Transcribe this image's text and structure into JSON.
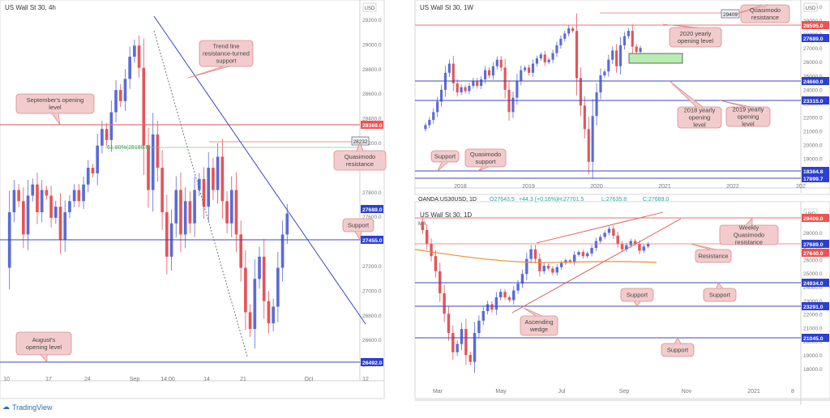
{
  "panels": [
    {
      "title": "US Wall St 30, 4h",
      "currency": "USD",
      "y_ticks": [
        "29200.0",
        "29000.0",
        "28800.0",
        "28600.0",
        "28400.0",
        "28200.0",
        "28000.0",
        "27800.0",
        "27600.0",
        "27400.0",
        "27200.0",
        "27000.0",
        "26800.0",
        "26600.0",
        "26400.0"
      ],
      "x_ticks": [
        "10",
        "17",
        "24",
        "Sep",
        "14:00",
        "14",
        "21",
        "Oct",
        "12"
      ],
      "price_labels": [
        {
          "text": "28369.0",
          "color": "#ef5350"
        },
        {
          "text": "27689.0",
          "color": "#2b3fd1"
        },
        {
          "text": "27455.0",
          "color": "#2b3fd1"
        },
        {
          "text": "26492.0",
          "color": "#2b3fd1"
        }
      ],
      "fib_label": "61.80%(28189.6)",
      "box_label": "28232",
      "annotations": [
        "Trend line resistance-turned support",
        "September's opening level",
        "Quasimodo resistance",
        "Support",
        "August's opening level"
      ]
    },
    {
      "title": "US Wall St 30, 1W",
      "currency": "USD",
      "y_ticks": [
        "30000.0",
        "29000.0",
        "28000.0",
        "27000.0",
        "26000.0",
        "25000.0",
        "24000.0",
        "23000.0",
        "22000.0",
        "21000.0",
        "20000.0",
        "19000.0",
        "18000.0"
      ],
      "x_ticks": [
        "2018",
        "2019",
        "2020",
        "2021",
        "2022",
        "202"
      ],
      "price_labels": [
        {
          "text": "28595.0",
          "color": "#ef5350"
        },
        {
          "text": "27689.0",
          "color": "#2b3fd1"
        },
        {
          "text": "24660.0",
          "color": "#2b3fd1"
        },
        {
          "text": "23315.0",
          "color": "#2b3fd1"
        },
        {
          "text": "18364.8",
          "color": "#2b3fd1"
        },
        {
          "text": "17899.7",
          "color": "#2b3fd1"
        }
      ],
      "box_label": "29409",
      "annotations": [
        "Quasimodo resistance",
        "2020 yearly opening level",
        "2018 yearly opening level",
        "2019 yearly opening level",
        "Support",
        "Quasimodo support"
      ]
    },
    {
      "header": {
        "symbol": "OANDA:US30USD, 1D",
        "o": "O27643.5",
        "change": "+44.3 (+0.16%)",
        "h": "H:27701.5",
        "l": "L:27635.8",
        "c": "C:27689.0"
      },
      "title": "US Wall St 30, 1D",
      "currency": "USD",
      "ma_label": "MA",
      "y_ticks": [
        "29000.0",
        "28000.0",
        "27000.0",
        "26000.0",
        "25000.0",
        "24000.0",
        "23000.0",
        "22000.0",
        "21000.0",
        "20000.0",
        "19000.0",
        "18000.0"
      ],
      "x_ticks": [
        "Mar",
        "May",
        "Jul",
        "Sep",
        "Nov",
        "2021",
        "8"
      ],
      "price_labels": [
        {
          "text": "29409.0",
          "color": "#ef5350"
        },
        {
          "text": "27689.0",
          "color": "#2b3fd1"
        },
        {
          "text": "27640.0",
          "color": "#ef5350"
        },
        {
          "text": "24934.0",
          "color": "#2b3fd1"
        },
        {
          "text": "23291.0",
          "color": "#2b3fd1"
        },
        {
          "text": "21045.0",
          "color": "#2b3fd1"
        }
      ],
      "annotations": [
        "Weekly Quasimodo resistance",
        "Resistance",
        "Support",
        "Support",
        "Ascending wedge",
        "Support"
      ]
    }
  ],
  "watermark": "TradingView",
  "colors": {
    "up": "#5b6bd6",
    "down": "#e2555a",
    "level_red": "#e57373",
    "level_blue": "#3b47b8",
    "fib_green": "#7fc98f",
    "ma_orange": "#e8903a",
    "note_bg": "#f2cccc",
    "note_border": "#d98c8c"
  },
  "chart_data": [
    {
      "type": "candlestick",
      "title": "US Wall St 30, 4h",
      "x_ticks": [
        "10",
        "17",
        "24",
        "Sep",
        "14:00",
        "14",
        "21",
        "Oct",
        "12"
      ],
      "ylim": [
        26300,
        29450
      ],
      "levels": [
        28369.0,
        27455.0,
        26492.0
      ],
      "fib": {
        "label": "61.80%(28189.6)",
        "value": 28189.6
      },
      "last": 27689.0,
      "path": [
        27200,
        27700,
        27900,
        27800,
        27500,
        27850,
        27950,
        27700,
        27900,
        27850,
        27650,
        27750,
        27450,
        27700,
        27800,
        27900,
        27800,
        27950,
        28100,
        28050,
        28300,
        28450,
        28350,
        28600,
        28800,
        28700,
        28900,
        29100,
        29200,
        29000,
        28300,
        27900,
        28400,
        28100,
        27700,
        27300,
        27600,
        27900,
        27500,
        27800,
        27600,
        27900,
        28000,
        27750,
        28100,
        27900,
        28200,
        27800,
        27600,
        27900,
        27500,
        27200,
        26800,
        26650,
        27100,
        27300,
        26900,
        26700,
        26850,
        27200,
        27500,
        27689
      ]
    },
    {
      "type": "candlestick",
      "title": "US Wall St 30, 1W",
      "x_ticks": [
        "2018",
        "2019",
        "2020",
        "2021",
        "2022",
        "202"
      ],
      "ylim": [
        17500,
        30000
      ],
      "levels": [
        28595.0,
        24660.0,
        23315.0,
        18364.8,
        17899.7
      ],
      "last": 27689.0,
      "path": [
        21500,
        21800,
        22200,
        22800,
        23600,
        24500,
        25800,
        26500,
        25000,
        24300,
        24700,
        24400,
        24800,
        25200,
        24800,
        25300,
        26000,
        25600,
        26300,
        26800,
        26200,
        24500,
        22800,
        23900,
        25200,
        26000,
        26200,
        25800,
        26500,
        26900,
        27200,
        26600,
        26800,
        27300,
        27900,
        28400,
        28800,
        29200,
        29000,
        25400,
        23300,
        21500,
        19000,
        22500,
        24300,
        25600,
        25900,
        26800,
        27500,
        26300,
        27900,
        28600,
        29000,
        27800,
        27400,
        27689
      ]
    },
    {
      "type": "candlestick",
      "title": "US Wall St 30, 1D",
      "x_ticks": [
        "Mar",
        "May",
        "Jul",
        "Sep",
        "Nov",
        "2021",
        "8"
      ],
      "ylim": [
        17900,
        30000
      ],
      "levels": [
        29409.0,
        27640.0,
        24934.0,
        23291.0,
        21045.0
      ],
      "last": 27689.0,
      "ma_name": "MA",
      "path": [
        29300,
        28700,
        27700,
        26800,
        25700,
        24100,
        22600,
        21200,
        19800,
        20400,
        21500,
        19600,
        19100,
        21200,
        22100,
        22800,
        23300,
        22900,
        23800,
        24200,
        23800,
        23600,
        24300,
        24800,
        25500,
        26600,
        27300,
        26600,
        25700,
        26100,
        25900,
        25600,
        26000,
        26300,
        26500,
        26400,
        26900,
        27100,
        26800,
        27000,
        27400,
        27900,
        28200,
        28500,
        28800,
        28300,
        27700,
        27300,
        27600,
        27900,
        27700,
        27200,
        27500,
        27689
      ]
    }
  ]
}
